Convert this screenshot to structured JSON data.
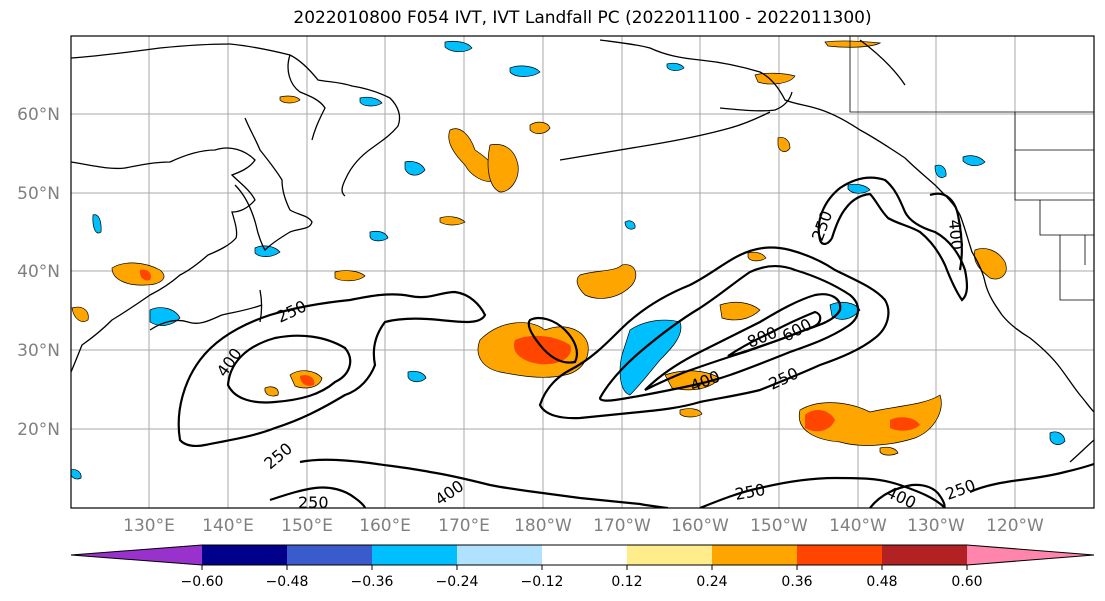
{
  "title": "2022010800 F054 IVT, IVT Landfall PC (2022011100 - 2022011300)",
  "latitude_labels": [
    "60°N",
    "50°N",
    "40°N",
    "30°N",
    "20°N"
  ],
  "longitude_labels": [
    "130°E",
    "140°E",
    "150°E",
    "160°E",
    "170°E",
    "180°W",
    "170°W",
    "160°W",
    "150°W",
    "140°W",
    "130°W",
    "120°W"
  ],
  "contour_labels": [
    "250",
    "400",
    "250",
    "400",
    "250",
    "800",
    "600",
    "400",
    "250",
    "250",
    "400",
    "250",
    "250",
    "400"
  ],
  "colorbar": {
    "colors": [
      "#9932CC",
      "#00008B",
      "#3A5BCC",
      "#00BFFF",
      "#B0E2FF",
      "#FFFFFF",
      "#FFEC8B",
      "#FFA500",
      "#FF4500",
      "#B22222",
      "#FF85AD"
    ],
    "tick_labels": [
      "−0.60",
      "−0.48",
      "−0.36",
      "−0.24",
      "−0.12",
      "0.12",
      "0.24",
      "0.36",
      "0.48",
      "0.60"
    ]
  }
}
